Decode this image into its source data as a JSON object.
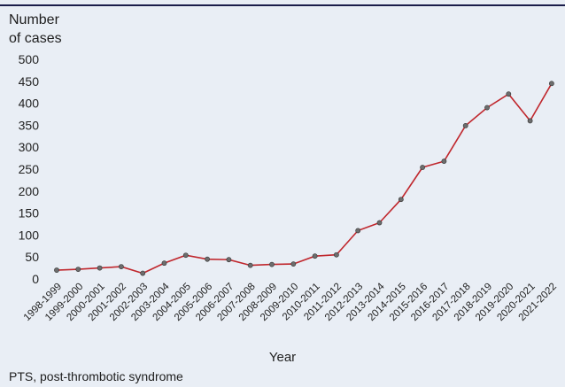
{
  "chart_data": {
    "type": "line",
    "ylabel_lines": [
      "Number",
      "of cases"
    ],
    "xlabel": "Year",
    "footnote": "PTS, post-thrombotic syndrome",
    "ylim": [
      0,
      500
    ],
    "yticks": [
      0,
      50,
      100,
      150,
      200,
      250,
      300,
      350,
      400,
      450,
      500
    ],
    "grid": false,
    "line_color": "#c0272d",
    "marker_color": "#6d6d6d",
    "background": "#e9eef5",
    "categories": [
      "1998-1999",
      "1999-2000",
      "2000-2001",
      "2001-2002",
      "2002-2003",
      "2003-2004",
      "2004-2005",
      "2005-2006",
      "2006-2007",
      "2007-2008",
      "2008-2009",
      "2009-2010",
      "2010-2011",
      "2011-2012",
      "2012-2013",
      "2013-2014",
      "2014-2015",
      "2015-2016",
      "2016-2017",
      "2017-2018",
      "2018-2019",
      "2019-2020",
      "2020-2021",
      "2021-2022"
    ],
    "values": [
      20,
      22,
      25,
      28,
      13,
      36,
      54,
      45,
      44,
      31,
      33,
      34,
      52,
      55,
      110,
      128,
      181,
      254,
      268,
      349,
      390,
      421,
      360,
      445
    ]
  }
}
